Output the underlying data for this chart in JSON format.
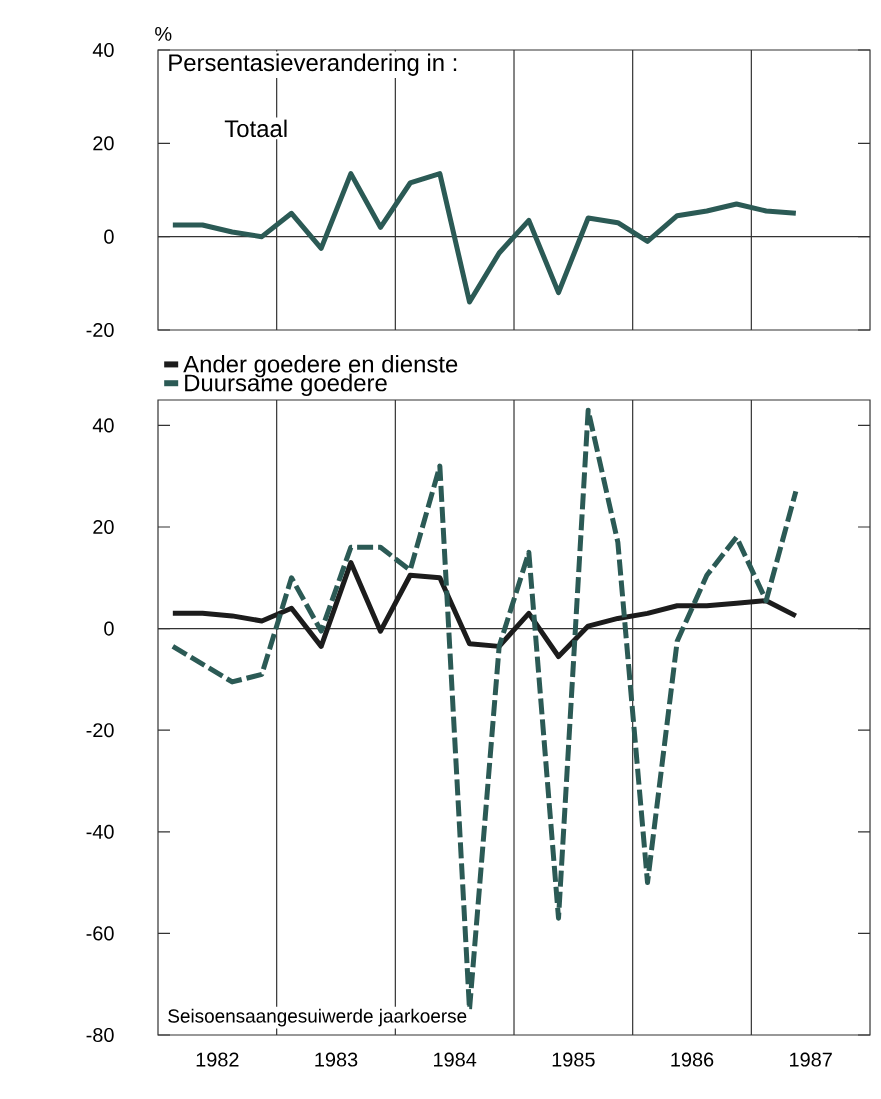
{
  "chart_data": [
    {
      "type": "line",
      "title": "Persentasieverandering in :",
      "ylabel": "%",
      "x": [
        1982.125,
        1982.375,
        1982.625,
        1982.875,
        1983.125,
        1983.375,
        1983.625,
        1983.875,
        1984.125,
        1984.375,
        1984.625,
        1984.875,
        1985.125,
        1985.375,
        1985.625,
        1985.875,
        1986.125,
        1986.375,
        1986.625,
        1986.875,
        1987.125,
        1987.375
      ],
      "series": [
        {
          "name": "Totaal",
          "color": "#2b5a55",
          "values": [
            2.5,
            2.5,
            1,
            0,
            5,
            -2.5,
            13.5,
            2,
            11.5,
            13.5,
            -14,
            -3.5,
            3.5,
            -12,
            4,
            3,
            -1,
            4.5,
            5.5,
            7,
            5.5,
            5
          ]
        }
      ],
      "xlim": [
        1982,
        1988
      ],
      "ylim": [
        -20,
        40
      ],
      "yticks": [
        -20,
        0,
        20,
        40
      ],
      "tick_labels": "y",
      "marker": "none",
      "line_style": "solid",
      "ref_lines": [
        {
          "axis": "y",
          "value": 0
        },
        {
          "axis": "x",
          "value": 1983
        },
        {
          "axis": "x",
          "value": 1984
        },
        {
          "axis": "x",
          "value": 1985
        },
        {
          "axis": "x",
          "value": 1986
        },
        {
          "axis": "x",
          "value": 1987
        }
      ]
    },
    {
      "type": "line",
      "annotations": [
        "Seisoensaangesuiwerde jaarkoerse"
      ],
      "x": [
        1982.125,
        1982.375,
        1982.625,
        1982.875,
        1983.125,
        1983.375,
        1983.625,
        1983.875,
        1984.125,
        1984.375,
        1984.625,
        1984.875,
        1985.125,
        1985.375,
        1985.625,
        1985.875,
        1986.125,
        1986.375,
        1986.625,
        1986.875,
        1987.125,
        1987.375
      ],
      "series": [
        {
          "name": "Ander goedere en dienste",
          "color": "#1c1c1c",
          "line_style": "solid",
          "values": [
            3,
            3,
            2.5,
            1.5,
            4,
            -3.5,
            13,
            -0.5,
            10.5,
            10,
            -3,
            -3.5,
            3,
            -5.5,
            0.5,
            2,
            3,
            4.5,
            4.5,
            5,
            5.5,
            2.5
          ]
        },
        {
          "name": "Duursame goedere",
          "color": "#2b5a55",
          "line_style": "dashed",
          "values": [
            -3.5,
            -7,
            -10.5,
            -9,
            10,
            -0.5,
            16,
            16,
            11.5,
            32,
            -75,
            -3.5,
            15,
            -57,
            43,
            17,
            -50,
            -2.5,
            10.5,
            18,
            5.5,
            27
          ]
        }
      ],
      "xlim": [
        1982,
        1988
      ],
      "ylim": [
        -80,
        45
      ],
      "yticks": [
        -80,
        -60,
        -40,
        -20,
        0,
        20,
        40
      ],
      "xticks": [
        {
          "value": 1982.5,
          "label": "1982"
        },
        {
          "value": 1983.5,
          "label": "1983"
        },
        {
          "value": 1984.5,
          "label": "1984"
        },
        {
          "value": 1985.5,
          "label": "1985"
        },
        {
          "value": 1986.5,
          "label": "1986"
        },
        {
          "value": 1987.5,
          "label": "1987"
        }
      ],
      "legend": "top left",
      "marker": "none",
      "ref_lines": [
        {
          "axis": "y",
          "value": 0
        },
        {
          "axis": "x",
          "value": 1983
        },
        {
          "axis": "x",
          "value": 1984
        },
        {
          "axis": "x",
          "value": 1985
        },
        {
          "axis": "x",
          "value": 1986
        },
        {
          "axis": "x",
          "value": 1987
        }
      ]
    }
  ]
}
